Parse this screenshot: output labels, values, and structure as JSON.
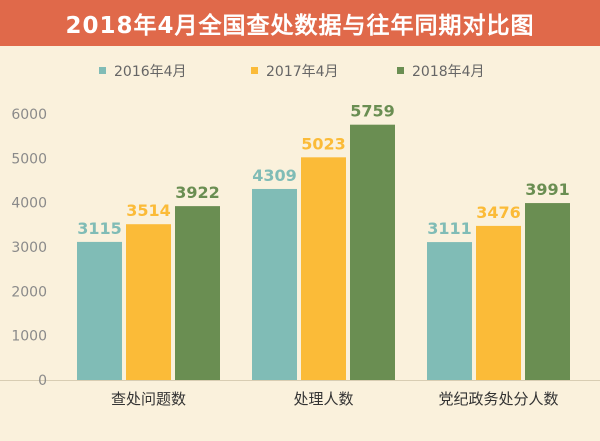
{
  "title": "2018年4月全国查处数据与往年同期对比图",
  "colors": {
    "background": "#faf1dc",
    "title_bar": "#e0694a",
    "series": [
      "#80bcb6",
      "#fbbb38",
      "#6a8e52"
    ]
  },
  "chart_data": {
    "type": "bar",
    "categories": [
      "查处问题数",
      "处理人数",
      "党纪政务处分人数"
    ],
    "series": [
      {
        "name": "2016年4月",
        "values": [
          3115,
          4309,
          3111
        ]
      },
      {
        "name": "2017年4月",
        "values": [
          3514,
          5023,
          3476
        ]
      },
      {
        "name": "2018年4月",
        "values": [
          3922,
          5759,
          3991
        ]
      }
    ],
    "ylim": [
      0,
      6000
    ],
    "yticks": [
      0,
      1000,
      2000,
      3000,
      4000,
      5000,
      6000
    ],
    "legend_position": "top",
    "grid": false
  }
}
